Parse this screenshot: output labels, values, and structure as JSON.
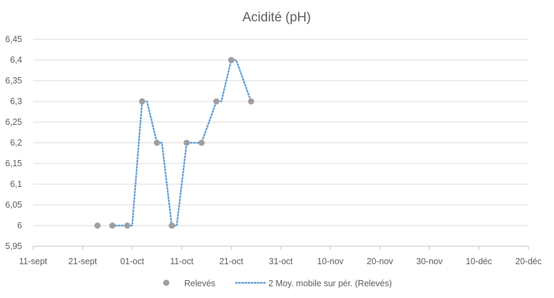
{
  "chart_data": {
    "type": "scatter",
    "title": "Acidité (pH)",
    "xlabel": "",
    "ylabel": "",
    "xlim": [
      "2023-09-11",
      "2023-12-20"
    ],
    "ylim": [
      5.95,
      6.45
    ],
    "grid": true,
    "legend_position": "bottom",
    "x_tick_labels": [
      "11-sept",
      "21-sept",
      "01-oct",
      "11-oct",
      "21-oct",
      "31-oct",
      "10-nov",
      "20-nov",
      "30-nov",
      "10-déc",
      "20-déc"
    ],
    "y_tick_labels": [
      "5,95",
      "6",
      "6,05",
      "6,1",
      "6,15",
      "6,2",
      "6,25",
      "6,3",
      "6,35",
      "6,4",
      "6,45"
    ],
    "series": [
      {
        "name": "Relevés",
        "kind": "scatter",
        "color": "#9e9e9e",
        "points": [
          {
            "x": "2023-09-24",
            "y": 6.0
          },
          {
            "x": "2023-09-27",
            "y": 6.0
          },
          {
            "x": "2023-09-30",
            "y": 6.0
          },
          {
            "x": "2023-10-03",
            "y": 6.3
          },
          {
            "x": "2023-10-06",
            "y": 6.2
          },
          {
            "x": "2023-10-09",
            "y": 6.0
          },
          {
            "x": "2023-10-12",
            "y": 6.2
          },
          {
            "x": "2023-10-15",
            "y": 6.2
          },
          {
            "x": "2023-10-18",
            "y": 6.3
          },
          {
            "x": "2023-10-21",
            "y": 6.4
          },
          {
            "x": "2023-10-25",
            "y": 6.3
          }
        ]
      },
      {
        "name": "2 Moy. mobile sur pér. (Relevés)",
        "kind": "line",
        "style": "dotted",
        "color": "#5b9bd5",
        "points": [
          {
            "x": "2023-09-27",
            "y": 6.0
          },
          {
            "x": "2023-09-30",
            "y": 6.0
          },
          {
            "x": "2023-10-01",
            "y": 6.0
          },
          {
            "x": "2023-10-03",
            "y": 6.3
          },
          {
            "x": "2023-10-04",
            "y": 6.3
          },
          {
            "x": "2023-10-06",
            "y": 6.2
          },
          {
            "x": "2023-10-07",
            "y": 6.2
          },
          {
            "x": "2023-10-09",
            "y": 6.0
          },
          {
            "x": "2023-10-10",
            "y": 6.0
          },
          {
            "x": "2023-10-12",
            "y": 6.2
          },
          {
            "x": "2023-10-15",
            "y": 6.2
          },
          {
            "x": "2023-10-18",
            "y": 6.3
          },
          {
            "x": "2023-10-19",
            "y": 6.3
          },
          {
            "x": "2023-10-21",
            "y": 6.4
          },
          {
            "x": "2023-10-22",
            "y": 6.4
          },
          {
            "x": "2023-10-25",
            "y": 6.3
          }
        ]
      }
    ]
  }
}
